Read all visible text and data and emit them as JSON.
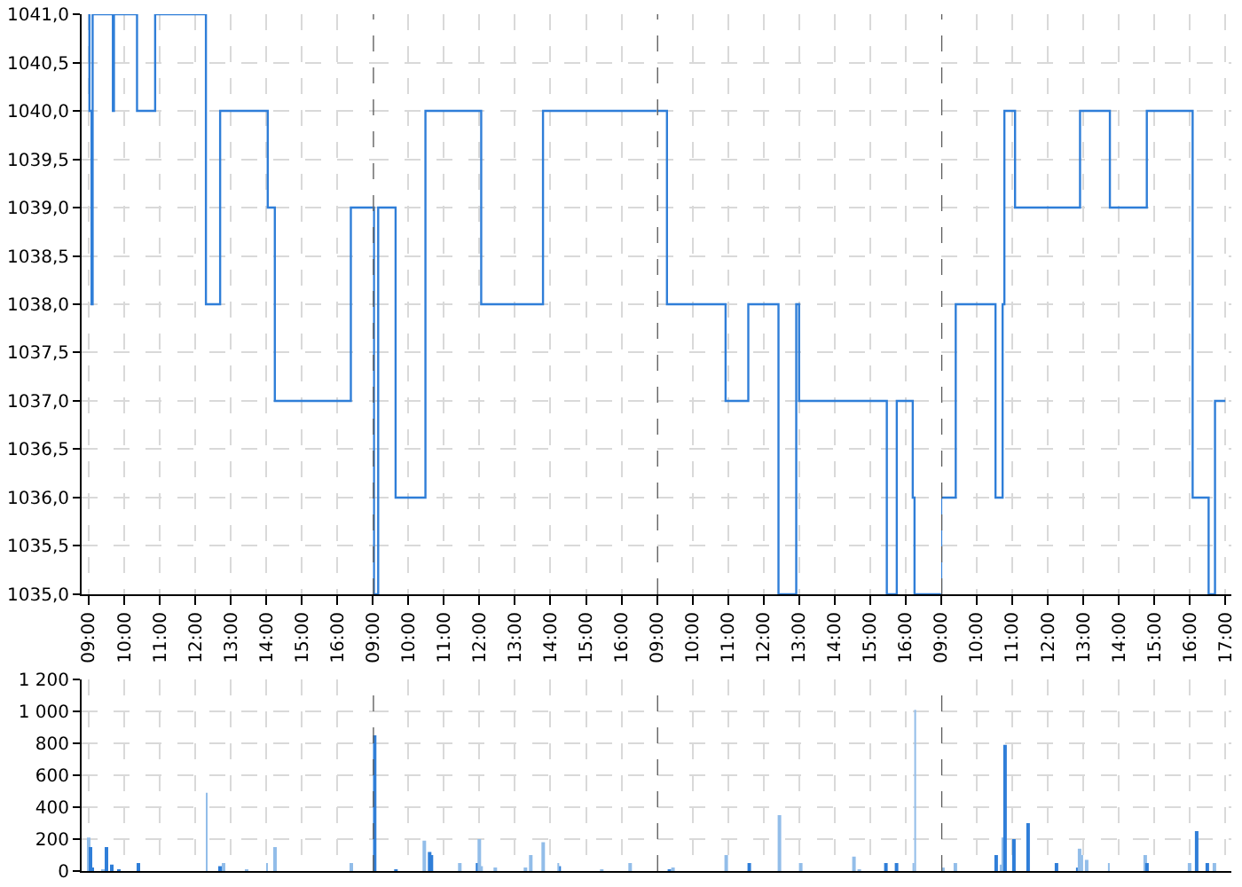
{
  "chart_data": [
    {
      "type": "step",
      "color": "#2f7ed8",
      "x": [
        9.0,
        9.02,
        9.08,
        9.11,
        9.68,
        9.71,
        10.36,
        10.87,
        12.3,
        12.7,
        14.04,
        14.24,
        16.38,
        17.0
      ],
      "values": [
        1041,
        1040,
        1038,
        1041,
        1040,
        1041,
        1040,
        1041,
        1038,
        1040,
        1039,
        1037,
        1039,
        1039
      ],
      "xlim": [
        8.8,
        17
      ],
      "xticks": [
        {
          "value": 9,
          "label": "09:00"
        },
        {
          "value": 10,
          "label": "10:00"
        },
        {
          "value": 11,
          "label": "11:00"
        },
        {
          "value": 12,
          "label": "12:00"
        },
        {
          "value": 13,
          "label": "13:00"
        },
        {
          "value": 14,
          "label": "14:00"
        },
        {
          "value": 15,
          "label": "15:00"
        },
        {
          "value": 16,
          "label": "16:00"
        }
      ],
      "ylim": [
        1035,
        1041
      ],
      "yticks": [
        {
          "value": 1041,
          "label": "1041,0"
        },
        {
          "value": 1040.5,
          "label": "1040,5"
        },
        {
          "value": 1040,
          "label": "1040,0"
        },
        {
          "value": 1039.5,
          "label": "1039,5"
        },
        {
          "value": 1039,
          "label": "1039,0"
        },
        {
          "value": 1038.5,
          "label": "1038,5"
        },
        {
          "value": 1038,
          "label": "1038,0"
        },
        {
          "value": 1037.5,
          "label": "1037,5"
        },
        {
          "value": 1037,
          "label": "1037,0"
        },
        {
          "value": 1036.5,
          "label": "1036,5"
        },
        {
          "value": 1036,
          "label": "1036,0"
        },
        {
          "value": 1035.5,
          "label": "1035,5"
        },
        {
          "value": 1035,
          "label": "1035,0"
        }
      ],
      "grid": true
    },
    {
      "type": "step",
      "color": "#2f7ed8",
      "x": [
        9.0,
        9.03,
        9.15,
        9.64,
        10.48,
        12.05,
        13.79,
        17.0
      ],
      "values": [
        1039,
        1035,
        1039,
        1036,
        1040,
        1038,
        1040,
        1040
      ],
      "xlim": [
        9,
        17
      ],
      "xticks": [
        {
          "value": 9,
          "label": "09:00"
        },
        {
          "value": 10,
          "label": "10:00"
        },
        {
          "value": 11,
          "label": "11:00"
        },
        {
          "value": 12,
          "label": "12:00"
        },
        {
          "value": 13,
          "label": "13:00"
        },
        {
          "value": 14,
          "label": "14:00"
        },
        {
          "value": 15,
          "label": "15:00"
        },
        {
          "value": 16,
          "label": "16:00"
        }
      ],
      "ylim": [
        1035,
        1041
      ],
      "yticks": [
        1041,
        1040.5,
        1040,
        1039.5,
        1039,
        1038.5,
        1038,
        1037.5,
        1037,
        1036.5,
        1036,
        1035.5,
        1035
      ],
      "grid": true,
      "tick_labels": "x",
      "ref_lines": [
        {
          "axis": "x",
          "value": 9,
          "color": "#555555",
          "line_style": "dashed"
        }
      ]
    },
    {
      "type": "step",
      "color": "#2f7ed8",
      "x": [
        9.0,
        9.28,
        10.93,
        11.57,
        12.42,
        12.92,
        13.0,
        15.47,
        15.75,
        16.2,
        16.25,
        17.0
      ],
      "values": [
        1040,
        1038,
        1037,
        1038,
        1035,
        1038,
        1037,
        1035,
        1037,
        1036,
        1035,
        1035
      ],
      "xlim": [
        9,
        17
      ],
      "xticks": [
        {
          "value": 9,
          "label": "09:00"
        },
        {
          "value": 10,
          "label": "10:00"
        },
        {
          "value": 11,
          "label": "11:00"
        },
        {
          "value": 12,
          "label": "12:00"
        },
        {
          "value": 13,
          "label": "13:00"
        },
        {
          "value": 14,
          "label": "14:00"
        },
        {
          "value": 15,
          "label": "15:00"
        },
        {
          "value": 16,
          "label": "16:00"
        }
      ],
      "ylim": [
        1035,
        1041
      ],
      "yticks": [
        1041,
        1040.5,
        1040,
        1039.5,
        1039,
        1038.5,
        1038,
        1037.5,
        1037,
        1036.5,
        1036,
        1035.5,
        1035
      ],
      "grid": true,
      "tick_labels": "x",
      "ref_lines": [
        {
          "axis": "x",
          "value": 9,
          "color": "#555555",
          "line_style": "dashed"
        }
      ]
    },
    {
      "type": "step",
      "color": "#2f7ed8",
      "x": [
        9.0,
        9.0,
        9.41,
        10.53,
        10.73,
        10.78,
        11.08,
        12.91,
        13.75,
        14.79,
        16.08,
        16.53,
        16.71,
        17.0
      ],
      "values": [
        1035,
        1036,
        1038,
        1036,
        1038,
        1040,
        1039,
        1040,
        1039,
        1040,
        1036,
        1035,
        1037,
        1037
      ],
      "xlim": [
        9,
        17.17
      ],
      "xticks": [
        {
          "value": 9,
          "label": "09:00"
        },
        {
          "value": 10,
          "label": "10:00"
        },
        {
          "value": 11,
          "label": "11:00"
        },
        {
          "value": 12,
          "label": "12:00"
        },
        {
          "value": 13,
          "label": "13:00"
        },
        {
          "value": 14,
          "label": "14:00"
        },
        {
          "value": 15,
          "label": "15:00"
        },
        {
          "value": 16,
          "label": "16:00"
        },
        {
          "value": 17,
          "label": "17:00"
        }
      ],
      "ylim": [
        1035,
        1041
      ],
      "yticks": [
        1041,
        1040.5,
        1040,
        1039.5,
        1039,
        1038.5,
        1038,
        1037.5,
        1037,
        1036.5,
        1036,
        1035.5,
        1035
      ],
      "grid": true,
      "tick_labels": "x",
      "ref_lines": [
        {
          "axis": "x",
          "value": 9,
          "color": "#555555",
          "line_style": "dashed"
        }
      ]
    },
    {
      "type": "bar",
      "x": [
        9.0,
        9.03,
        9.1,
        9.38,
        9.51,
        9.66,
        9.85,
        10.38,
        12.32,
        12.7,
        12.81,
        13.44,
        14.02,
        14.26,
        16.4
      ],
      "values": [
        210,
        150,
        20,
        10,
        150,
        40,
        10,
        50,
        490,
        30,
        50,
        10,
        50,
        150,
        50
      ],
      "colors": [
        "#92bde9",
        "#2f7ed8",
        "#2f7ed8",
        "#92bde9",
        "#2f7ed8",
        "#2f7ed8",
        "#2f7ed8",
        "#2f7ed8",
        "#92bde9",
        "#2f7ed8",
        "#92bde9",
        "#92bde9",
        "#92bde9",
        "#92bde9",
        "#92bde9"
      ],
      "xlim": [
        8.8,
        17
      ],
      "xticks": [
        9,
        10,
        11,
        12,
        13,
        14,
        15,
        16
      ],
      "ylim": [
        0,
        1200
      ],
      "yticks": [
        {
          "value": 1200,
          "label": "1 200"
        },
        {
          "value": 1000,
          "label": "1 000"
        },
        800,
        600,
        400,
        200,
        0
      ],
      "grid": true,
      "tick_labels": "y"
    },
    {
      "type": "bar",
      "x": [
        9.03,
        9.63,
        10.47,
        10.62,
        10.67,
        11.44,
        11.96,
        11.99,
        12.05,
        12.43,
        13.31,
        13.43,
        13.81,
        14.22,
        14.27,
        15.45,
        16.24
      ],
      "values": [
        850,
        10,
        190,
        120,
        100,
        50,
        50,
        200,
        30,
        20,
        20,
        100,
        180,
        50,
        30,
        10,
        50
      ],
      "colors": [
        "#2f7ed8",
        "#2f7ed8",
        "#92bde9",
        "#2f7ed8",
        "#2f7ed8",
        "#92bde9",
        "#2f7ed8",
        "#92bde9",
        "#92bde9",
        "#92bde9",
        "#92bde9",
        "#92bde9",
        "#92bde9",
        "#92bde9",
        "#2f7ed8",
        "#92bde9",
        "#92bde9"
      ],
      "xlim": [
        9,
        17
      ],
      "xticks": [
        9,
        10,
        11,
        12,
        13,
        14,
        15,
        16
      ],
      "ylim": [
        0,
        1200
      ],
      "yticks": [
        1200,
        1000,
        800,
        600,
        400,
        200,
        0
      ],
      "grid": true,
      "tick_labels": false,
      "ref_lines": [
        {
          "axis": "x",
          "value": 9,
          "color": "#555555",
          "line_style": "dashed"
        }
      ]
    },
    {
      "type": "bar",
      "x": [
        9.33,
        9.43,
        10.95,
        11.58,
        12.44,
        13.04,
        14.56,
        14.68,
        15.46,
        15.75,
        16.22,
        16.27
      ],
      "values": [
        10,
        20,
        100,
        50,
        350,
        50,
        90,
        10,
        50,
        50,
        50,
        1010
      ],
      "colors": [
        "#2f7ed8",
        "#92bde9",
        "#92bde9",
        "#2f7ed8",
        "#92bde9",
        "#92bde9",
        "#92bde9",
        "#92bde9",
        "#2f7ed8",
        "#2f7ed8",
        "#92bde9",
        "#92bde9"
      ],
      "xlim": [
        9,
        17
      ],
      "xticks": [
        9,
        10,
        11,
        12,
        13,
        14,
        15,
        16
      ],
      "ylim": [
        0,
        1200
      ],
      "yticks": [
        1200,
        1000,
        800,
        600,
        400,
        200,
        0
      ],
      "grid": true,
      "tick_labels": false,
      "ref_lines": [
        {
          "axis": "x",
          "value": 9,
          "color": "#555555",
          "line_style": "dashed"
        }
      ]
    },
    {
      "type": "bar",
      "x": [
        9.05,
        9.41,
        10.53,
        10.7,
        10.75,
        10.78,
        11.04,
        11.43,
        12.26,
        12.82,
        12.88,
        12.97,
        13.08,
        13.72,
        14.74,
        14.79,
        16.01,
        16.18,
        16.51,
        16.7
      ],
      "values": [
        20,
        50,
        100,
        40,
        210,
        790,
        200,
        300,
        50,
        20,
        140,
        100,
        70,
        50,
        100,
        50,
        50,
        250,
        50,
        50
      ],
      "colors": [
        "#92bde9",
        "#92bde9",
        "#2f7ed8",
        "#92bde9",
        "#92bde9",
        "#2f7ed8",
        "#2f7ed8",
        "#2f7ed8",
        "#2f7ed8",
        "#2f7ed8",
        "#92bde9",
        "#92bde9",
        "#92bde9",
        "#92bde9",
        "#92bde9",
        "#2f7ed8",
        "#92bde9",
        "#2f7ed8",
        "#2f7ed8",
        "#92bde9"
      ],
      "xlim": [
        9,
        17.17
      ],
      "xticks": [
        9,
        10,
        11,
        12,
        13,
        14,
        15,
        16,
        17
      ],
      "ylim": [
        0,
        1200
      ],
      "yticks": [
        1200,
        1000,
        800,
        600,
        400,
        200,
        0
      ],
      "grid": true,
      "tick_labels": false,
      "ref_lines": [
        {
          "axis": "x",
          "value": 9,
          "color": "#555555",
          "line_style": "dashed"
        }
      ]
    }
  ]
}
